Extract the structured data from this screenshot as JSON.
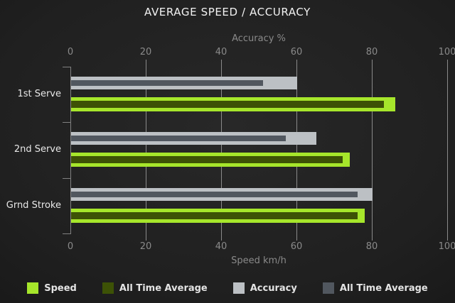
{
  "chart_data": {
    "type": "bar",
    "orientation": "horizontal",
    "title": "AVERAGE SPEED / ACCURACY",
    "categories": [
      "1st Serve",
      "2nd Serve",
      "Grnd Stroke"
    ],
    "series": [
      {
        "name": "Speed",
        "color": "#a6e62b",
        "values": [
          86,
          74,
          78
        ]
      },
      {
        "name": "All Time Average",
        "color": "#3d5206",
        "values": [
          83,
          72,
          76
        ]
      },
      {
        "name": "Accuracy",
        "color": "#bcc0c4",
        "values": [
          60,
          65,
          80
        ]
      },
      {
        "name": "All Time Average",
        "color": "#51575f",
        "values": [
          51,
          57,
          76
        ]
      }
    ],
    "top_axis": {
      "label": "Accuracy %",
      "ticks": [
        0,
        20,
        40,
        60,
        80,
        100
      ],
      "range": [
        0,
        100
      ]
    },
    "bottom_axis": {
      "label": "Speed km/h",
      "ticks": [
        0,
        20,
        40,
        60,
        80,
        100
      ],
      "range": [
        0,
        100
      ]
    },
    "legend": [
      {
        "label": "Speed",
        "color": "#a6e62b"
      },
      {
        "label": "All Time Average",
        "color": "#3d5206"
      },
      {
        "label": "Accuracy",
        "color": "#bcc0c4"
      },
      {
        "label": "All Time Average",
        "color": "#51575f"
      }
    ],
    "grid": true,
    "legend_position": "bottom"
  },
  "colors": {
    "background": "#202020",
    "grid": "#8a8a8a",
    "axis": "#818181",
    "tick_label": "#8a8a8a",
    "axis_label": "#8a8a8a",
    "title": "#f2f2f2",
    "category_label": "#e8e8e8",
    "legend_text": "#e4e4e4"
  }
}
